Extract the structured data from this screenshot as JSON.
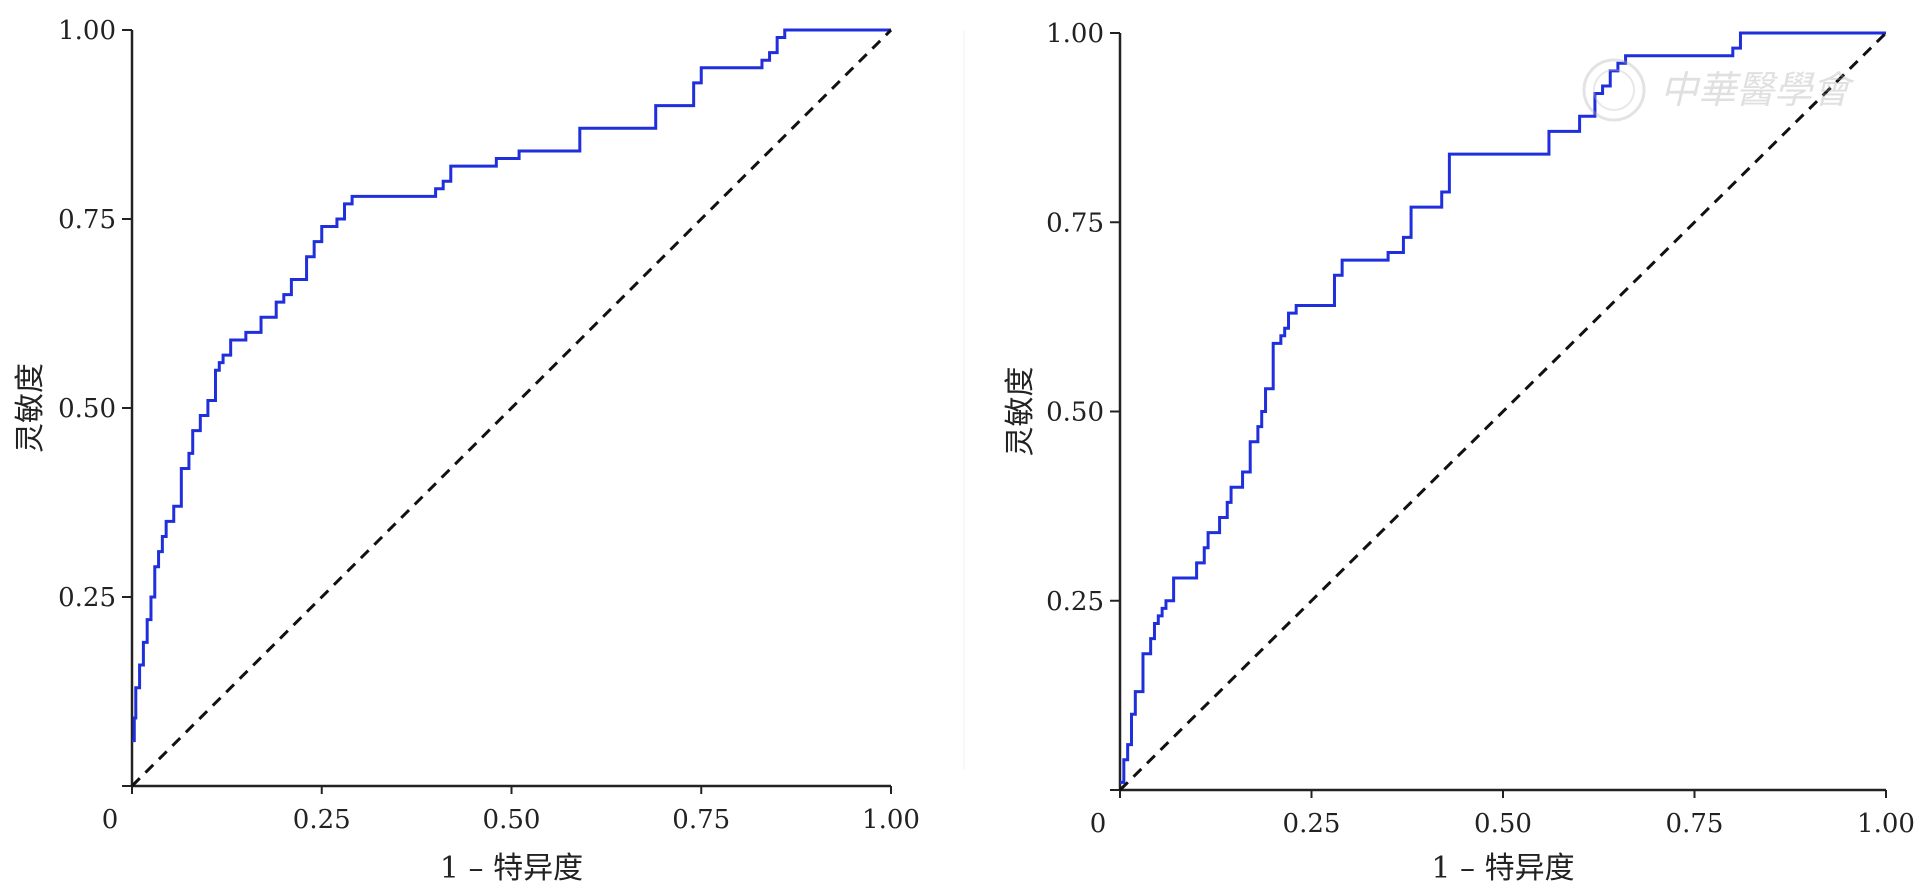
{
  "chart_data": [
    {
      "type": "line",
      "title": "",
      "xlabel": "1 – 特异度",
      "ylabel": "灵敏度",
      "xlim": [
        0,
        1
      ],
      "ylim": [
        0,
        1
      ],
      "x_ticks": [
        "0",
        "0.25",
        "0.50",
        "0.75",
        "1.00"
      ],
      "y_ticks": [
        "0.25",
        "0.50",
        "0.75",
        "1.00"
      ],
      "grid": false,
      "legend": "none",
      "colors": {
        "roc": "#1f2fdc",
        "reference": "#111111"
      },
      "series": [
        {
          "style": "step",
          "x": [
            0,
            0.003,
            0.005,
            0.01,
            0.015,
            0.02,
            0.025,
            0.03,
            0.035,
            0.04,
            0.045,
            0.055,
            0.065,
            0.075,
            0.08,
            0.09,
            0.1,
            0.11,
            0.115,
            0.12,
            0.13,
            0.15,
            0.17,
            0.19,
            0.2,
            0.21,
            0.23,
            0.24,
            0.25,
            0.27,
            0.28,
            0.29,
            0.3,
            0.31,
            0.4,
            0.41,
            0.42,
            0.43,
            0.48,
            0.51,
            0.59,
            0.6,
            0.63,
            0.69,
            0.74,
            0.75,
            0.83,
            0.84,
            0.85,
            0.86,
            0.9,
            1.0
          ],
          "y": [
            0.06,
            0.09,
            0.13,
            0.16,
            0.19,
            0.22,
            0.25,
            0.29,
            0.31,
            0.33,
            0.35,
            0.37,
            0.42,
            0.44,
            0.47,
            0.49,
            0.51,
            0.55,
            0.56,
            0.57,
            0.59,
            0.6,
            0.62,
            0.64,
            0.65,
            0.67,
            0.7,
            0.72,
            0.74,
            0.75,
            0.77,
            0.78,
            0.78,
            0.78,
            0.79,
            0.8,
            0.82,
            0.82,
            0.83,
            0.84,
            0.87,
            0.87,
            0.87,
            0.9,
            0.93,
            0.95,
            0.96,
            0.97,
            0.99,
            1.0,
            1.0,
            1.0
          ]
        },
        {
          "style": "dashed",
          "x": [
            0,
            1
          ],
          "y": [
            0,
            1
          ]
        }
      ]
    },
    {
      "type": "line",
      "title": "",
      "xlabel": "1 – 特异度",
      "ylabel": "灵敏度",
      "xlim": [
        0,
        1
      ],
      "ylim": [
        0,
        1
      ],
      "x_ticks": [
        "0",
        "0.25",
        "0.50",
        "0.75",
        "1.00"
      ],
      "y_ticks": [
        "0.25",
        "0.50",
        "0.75",
        "1.00"
      ],
      "grid": false,
      "legend": "none",
      "colors": {
        "roc": "#1f2fdc",
        "reference": "#111111"
      },
      "series": [
        {
          "style": "step",
          "x": [
            0,
            0.005,
            0.01,
            0.015,
            0.02,
            0.03,
            0.04,
            0.045,
            0.05,
            0.055,
            0.06,
            0.07,
            0.1,
            0.11,
            0.115,
            0.13,
            0.14,
            0.145,
            0.16,
            0.17,
            0.18,
            0.185,
            0.19,
            0.2,
            0.21,
            0.215,
            0.22,
            0.23,
            0.24,
            0.28,
            0.29,
            0.35,
            0.37,
            0.38,
            0.42,
            0.43,
            0.56,
            0.6,
            0.62,
            0.63,
            0.64,
            0.65,
            0.66,
            0.8,
            0.81,
            1.0
          ],
          "y": [
            0.01,
            0.04,
            0.06,
            0.1,
            0.13,
            0.18,
            0.2,
            0.22,
            0.23,
            0.24,
            0.25,
            0.28,
            0.3,
            0.32,
            0.34,
            0.36,
            0.38,
            0.4,
            0.42,
            0.46,
            0.48,
            0.5,
            0.53,
            0.59,
            0.6,
            0.61,
            0.63,
            0.64,
            0.64,
            0.68,
            0.7,
            0.71,
            0.73,
            0.77,
            0.79,
            0.84,
            0.87,
            0.89,
            0.92,
            0.93,
            0.95,
            0.96,
            0.97,
            0.98,
            1.0,
            1.0
          ]
        },
        {
          "style": "dashed",
          "x": [
            0,
            1
          ],
          "y": [
            0,
            1
          ]
        }
      ]
    }
  ],
  "watermark": {
    "text": "中華醫學會"
  }
}
